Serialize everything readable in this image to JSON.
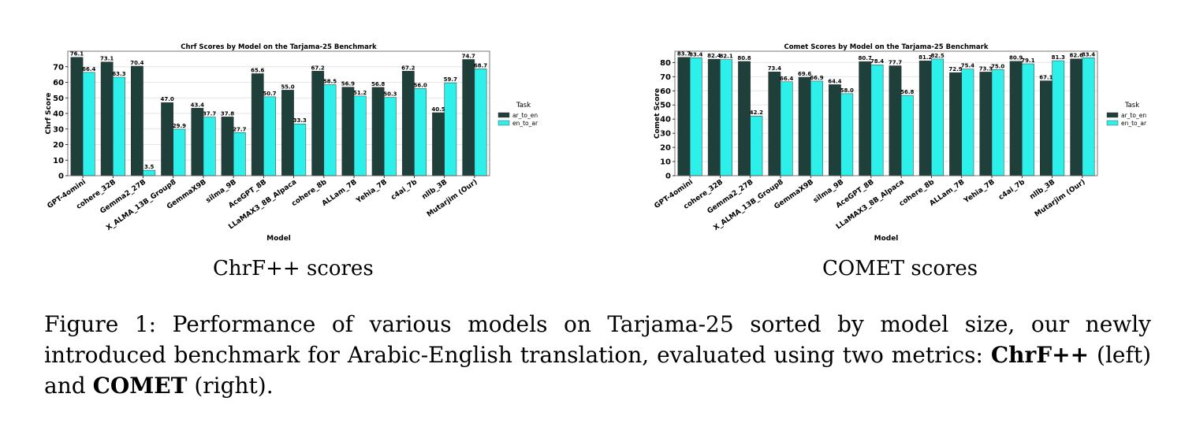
{
  "chart_data": [
    {
      "type": "bar",
      "title": "Chrf Scores by Model on the Tarjama-25 Benchmark",
      "xlabel": "Model",
      "ylabel": "Chrf Score",
      "ylim": [
        0,
        80
      ],
      "yticks": [
        0,
        10,
        20,
        30,
        40,
        50,
        60,
        70
      ],
      "legend_title": "Task",
      "legend_placement": "right",
      "grid": true,
      "categories": [
        "GPT-4omini",
        "cohere_32B",
        "Gemma2_27B",
        "X_ALMA_13B_Group8",
        "GemmaX9B",
        "silma_9B",
        "AceGPT_8B",
        "LLaMAX3_8B_Alpaca",
        "cohere_8b",
        "ALLam_7B",
        "Yehia_7B",
        "c4ai_7b",
        "nllb_3B",
        "Mutarjim (Our)"
      ],
      "series": [
        {
          "name": "ar_to_en",
          "color": "#1f3f3a",
          "values": [
            76.1,
            73.1,
            70.4,
            47.0,
            43.4,
            37.8,
            65.6,
            55.0,
            67.2,
            56.9,
            56.8,
            67.2,
            40.5,
            74.7
          ]
        },
        {
          "name": "en_to_ar",
          "color": "#2ef0ea",
          "values": [
            66.4,
            63.3,
            3.5,
            29.9,
            37.7,
            27.7,
            50.7,
            33.3,
            58.5,
            51.2,
            50.3,
            56.0,
            59.7,
            68.7
          ]
        }
      ]
    },
    {
      "type": "bar",
      "title": "Comet Scores by Model on the Tarjama-25 Benchmark",
      "xlabel": "Model",
      "ylabel": "Comet Score",
      "ylim": [
        0,
        88
      ],
      "yticks": [
        0,
        10,
        20,
        30,
        40,
        50,
        60,
        70,
        80
      ],
      "legend_title": "Task",
      "legend_placement": "right",
      "grid": true,
      "categories": [
        "GPT-4omini",
        "cohere_32B",
        "Gemma2_27B",
        "X_ALMA_13B_Group8",
        "GemmaX9B",
        "silma_9B",
        "AceGPT_8B",
        "LLaMAX3_8B_Alpaca",
        "cohere_8b",
        "ALLam_7B",
        "Yehia_7B",
        "c4ai_7b",
        "nllb_3B",
        "Mutarjim (Our)"
      ],
      "series": [
        {
          "name": "ar_to_en",
          "color": "#1f3f3a",
          "values": [
            83.7,
            82.4,
            80.8,
            73.4,
            69.6,
            64.4,
            80.7,
            77.7,
            81.2,
            72.9,
            73.3,
            80.9,
            67.1,
            82.6
          ]
        },
        {
          "name": "en_to_ar",
          "color": "#2ef0ea",
          "values": [
            83.4,
            82.1,
            42.2,
            66.4,
            66.9,
            58.0,
            78.4,
            56.8,
            82.5,
            75.4,
            75.0,
            79.1,
            81.3,
            83.4
          ]
        }
      ]
    }
  ],
  "subcaptions": {
    "left": "ChrF++ scores",
    "right": "COMET scores"
  },
  "caption": {
    "prefix": "Figure 1:  Performance of various models on Tarjama-25 sorted by model size, our newly introduced benchmark for Arabic-English translation, evaluated using two metrics: ",
    "metric1": "ChrF++",
    "mid": " (left) and ",
    "metric2": "COMET",
    "suffix": " (right)."
  }
}
